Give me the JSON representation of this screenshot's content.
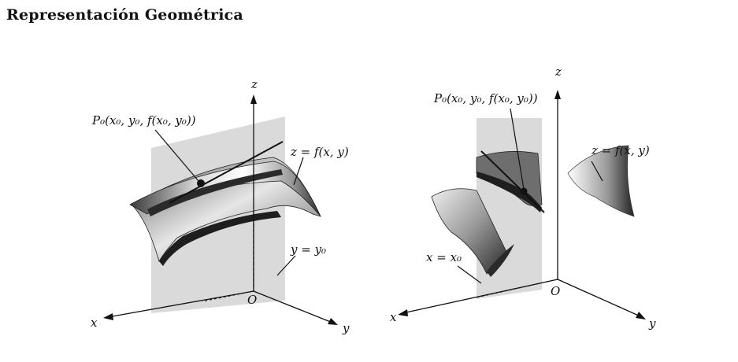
{
  "section_title": "Representación Geométrica",
  "figure_left": {
    "axis_z": "z",
    "axis_x": "x",
    "axis_y": "y",
    "origin": "O",
    "point_label": "P₀(x₀, y₀, f(x₀, y₀))",
    "surface_label": "z = f(x, y)",
    "plane_label": "y = y₀"
  },
  "figure_right": {
    "axis_z": "z",
    "axis_x": "x",
    "axis_y": "y",
    "origin": "O",
    "point_label": "P₀(x₀, y₀, f(x₀, y₀))",
    "surface_label": "z = f(x, y)",
    "plane_label": "x = x₀"
  }
}
